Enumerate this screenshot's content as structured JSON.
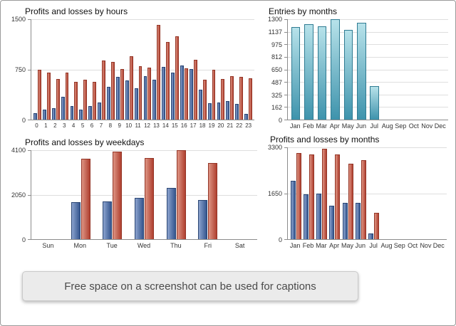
{
  "caption": {
    "text": "Free space on a screenshot can be used for captions"
  },
  "colors": {
    "axis": "#8c8c8c",
    "grid": "#dedede",
    "title": "#111111",
    "label": "#333333"
  },
  "chart_data": [
    {
      "type": "bar",
      "title": "Profits and losses by hours",
      "categories": [
        "0",
        "1",
        "2",
        "3",
        "4",
        "5",
        "6",
        "7",
        "8",
        "9",
        "10",
        "11",
        "12",
        "13",
        "14",
        "15",
        "16",
        "17",
        "18",
        "19",
        "20",
        "21",
        "22",
        "23"
      ],
      "ylim": [
        0,
        1500
      ],
      "yticks": [
        0,
        750,
        1500
      ],
      "grid": true,
      "legend": "none",
      "series": [
        {
          "name": "profits",
          "color": "#35568F",
          "border": "#2A4573",
          "gradient": {
            "from": "#8CA3CE",
            "to": "#35568F",
            "direction": "right"
          },
          "values": [
            100,
            150,
            170,
            340,
            200,
            150,
            200,
            260,
            490,
            640,
            580,
            470,
            650,
            600,
            790,
            700,
            810,
            760,
            450,
            250,
            260,
            280,
            230,
            90
          ]
        },
        {
          "name": "losses",
          "color": "#B04030",
          "border": "#943526",
          "gradient": {
            "from": "#DD9483",
            "to": "#B04030",
            "direction": "right"
          },
          "values": [
            750,
            700,
            610,
            700,
            560,
            600,
            560,
            880,
            860,
            760,
            950,
            800,
            780,
            1420,
            1160,
            1240,
            770,
            890,
            600,
            750,
            610,
            650,
            640,
            620
          ]
        }
      ]
    },
    {
      "type": "bar",
      "title": "Entries by months",
      "categories": [
        "Jan",
        "Feb",
        "Mar",
        "Apr",
        "May",
        "Jun",
        "Jul",
        "Aug",
        "Sep",
        "Oct",
        "Nov",
        "Dec"
      ],
      "ylim": [
        0,
        1300
      ],
      "yticks": [
        0,
        162,
        325,
        487,
        650,
        812,
        975,
        1137,
        1300
      ],
      "grid": true,
      "legend": "none",
      "series": [
        {
          "name": "entries",
          "color": "#3E93AC",
          "border": "#2F7B92",
          "gradient": {
            "from": "#B7E2EA",
            "to": "#3E93AC",
            "direction": "bottom"
          },
          "values": [
            1200,
            1235,
            1205,
            1300,
            1165,
            1255,
            430,
            0,
            0,
            0,
            0,
            0
          ]
        }
      ]
    },
    {
      "type": "bar",
      "title": "Profits and losses by weekdays",
      "categories": [
        "Sun",
        "Mon",
        "Tue",
        "Wed",
        "Thu",
        "Fri",
        "Sat"
      ],
      "ylim": [
        0,
        4100
      ],
      "yticks": [
        0,
        2050,
        4100
      ],
      "grid": true,
      "legend": "none",
      "series": [
        {
          "name": "profits",
          "color": "#35568F",
          "border": "#2A4573",
          "gradient": {
            "from": "#8CA3CE",
            "to": "#35568F",
            "direction": "right"
          },
          "values": [
            0,
            1700,
            1750,
            1900,
            2350,
            1800,
            0
          ]
        },
        {
          "name": "losses",
          "color": "#B04030",
          "border": "#943526",
          "gradient": {
            "from": "#DD9483",
            "to": "#B04030",
            "direction": "right"
          },
          "values": [
            0,
            3700,
            4050,
            3750,
            4100,
            3500,
            0
          ]
        }
      ]
    },
    {
      "type": "bar",
      "title": "Profits and losses by months",
      "categories": [
        "Jan",
        "Feb",
        "Mar",
        "Apr",
        "May",
        "Jun",
        "Jul",
        "Aug",
        "Sep",
        "Oct",
        "Nov",
        "Dec"
      ],
      "ylim": [
        0,
        3300
      ],
      "yticks": [
        0,
        1650,
        3300
      ],
      "grid": true,
      "legend": "none",
      "series": [
        {
          "name": "profits",
          "color": "#35568F",
          "border": "#2A4573",
          "gradient": {
            "from": "#8CA3CE",
            "to": "#35568F",
            "direction": "right"
          },
          "values": [
            2100,
            1600,
            1650,
            1200,
            1300,
            1300,
            200,
            0,
            0,
            0,
            0,
            0
          ]
        },
        {
          "name": "losses",
          "color": "#B04030",
          "border": "#943526",
          "gradient": {
            "from": "#DD9483",
            "to": "#B04030",
            "direction": "right"
          },
          "values": [
            3100,
            3050,
            3250,
            3050,
            2700,
            2850,
            950,
            0,
            0,
            0,
            0,
            0
          ]
        }
      ]
    }
  ]
}
